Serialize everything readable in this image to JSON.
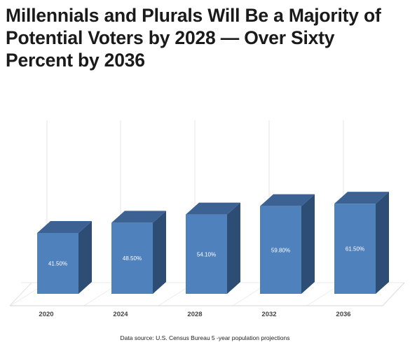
{
  "header": {
    "title": "Millennials and Plurals Will Be a Majority of Potential Voters by 2028 — Over Sixty Percent by 2036"
  },
  "chart_data": {
    "type": "bar",
    "style": "3d-column",
    "categories": [
      "2020",
      "2024",
      "2028",
      "2032",
      "2036"
    ],
    "values": [
      41.5,
      48.5,
      54.1,
      59.8,
      61.5
    ],
    "data_labels": [
      "41.50%",
      "48.50%",
      "54.10%",
      "59.80%",
      "61.50%"
    ],
    "title": "",
    "xlabel": "",
    "ylabel": "",
    "ylim": [
      0,
      70
    ],
    "grid": true,
    "legend": "none",
    "bar_color": "#4f81bd",
    "bar_side_color": "#2e4d75",
    "bar_top_color": "#3c6294",
    "source": "Data source: U.S. Census Bureau 5  -year population projections"
  }
}
